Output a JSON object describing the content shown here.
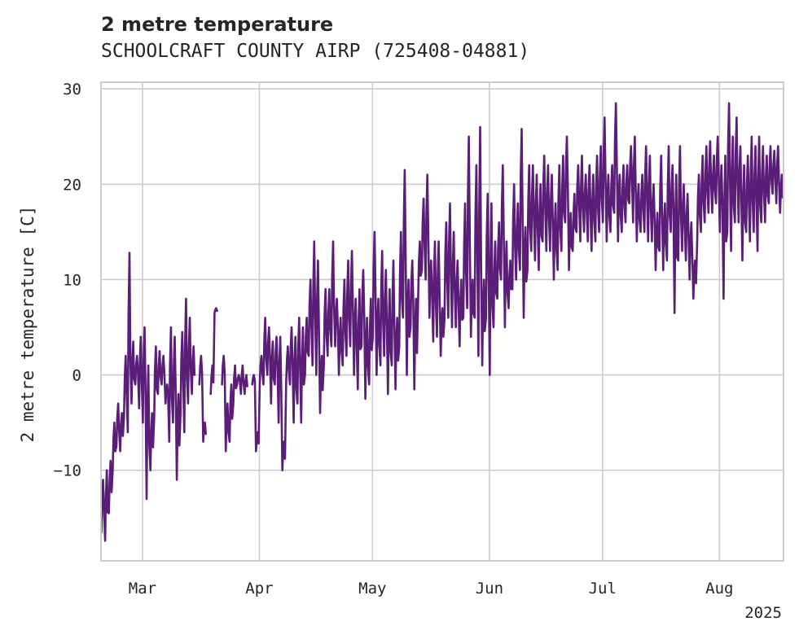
{
  "title": "2 metre temperature",
  "subtitle": "SCHOOLCRAFT COUNTY AIRP (725408-04881)",
  "colors": {
    "line": "#5b1e78",
    "grid": "#cccccc",
    "frame": "#cccccc",
    "text": "#262626",
    "background": "#ffffff"
  },
  "chart_data": {
    "type": "line",
    "title": "2 metre temperature",
    "subtitle": "SCHOOLCRAFT COUNTY AIRP (725408-04881)",
    "xlabel": "",
    "ylabel": "2 metre temperature [C]",
    "x_type": "date",
    "xlim": [
      "2025-02-18",
      "2025-08-18"
    ],
    "ylim": [
      -19.5,
      30.7
    ],
    "yticks": [
      -10,
      0,
      10,
      20,
      30
    ],
    "xticks": [
      {
        "date": "2025-03-01",
        "label": "Mar"
      },
      {
        "date": "2025-04-01",
        "label": "Apr"
      },
      {
        "date": "2025-05-01",
        "label": "May"
      },
      {
        "date": "2025-06-01",
        "label": "Jun"
      },
      {
        "date": "2025-07-01",
        "label": "Jul"
      },
      {
        "date": "2025-08-01",
        "label": "Aug"
      }
    ],
    "x_offset_label": "2025",
    "grid": true,
    "legend": "none",
    "series": [
      {
        "x": [
          "2025-02-18",
          "2025-02-19",
          "2025-02-20",
          "2025-02-21",
          "2025-02-22",
          "2025-02-23",
          "2025-02-24",
          "2025-02-25",
          "2025-02-26",
          "2025-02-27",
          "2025-02-28",
          "2025-03-01",
          "2025-03-02",
          "2025-03-03",
          "2025-03-04",
          "2025-03-05",
          "2025-03-06",
          "2025-03-07",
          "2025-03-08",
          "2025-03-09",
          "2025-03-10",
          "2025-03-11",
          "2025-03-12",
          "2025-03-13",
          "2025-03-14",
          "2025-03-15",
          "2025-03-16",
          "2025-03-17",
          "2025-03-18",
          "2025-03-19",
          "2025-03-20",
          "2025-03-21",
          "2025-03-22",
          "2025-03-23",
          "2025-03-24",
          "2025-03-25",
          "2025-03-26",
          "2025-03-27",
          "2025-03-28",
          "2025-03-29",
          "2025-03-30",
          "2025-03-31",
          "2025-04-01",
          "2025-04-02",
          "2025-04-03",
          "2025-04-04",
          "2025-04-05",
          "2025-04-06",
          "2025-04-07",
          "2025-04-08",
          "2025-04-09",
          "2025-04-10",
          "2025-04-11",
          "2025-04-12",
          "2025-04-13",
          "2025-04-14",
          "2025-04-15",
          "2025-04-16",
          "2025-04-17",
          "2025-04-18",
          "2025-04-19",
          "2025-04-20",
          "2025-04-21",
          "2025-04-22",
          "2025-04-23",
          "2025-04-24",
          "2025-04-25",
          "2025-04-26",
          "2025-04-27",
          "2025-04-28",
          "2025-04-29",
          "2025-04-30",
          "2025-05-01",
          "2025-05-02",
          "2025-05-03",
          "2025-05-04",
          "2025-05-05",
          "2025-05-06",
          "2025-05-07",
          "2025-05-08",
          "2025-05-09",
          "2025-05-10",
          "2025-05-11",
          "2025-05-12",
          "2025-05-13",
          "2025-05-14",
          "2025-05-15",
          "2025-05-16",
          "2025-05-17",
          "2025-05-18",
          "2025-05-19",
          "2025-05-20",
          "2025-05-21",
          "2025-05-22",
          "2025-05-23",
          "2025-05-24",
          "2025-05-25",
          "2025-05-26",
          "2025-05-27",
          "2025-05-28",
          "2025-05-29",
          "2025-05-30",
          "2025-05-31",
          "2025-06-01",
          "2025-06-02",
          "2025-06-03",
          "2025-06-04",
          "2025-06-05",
          "2025-06-06",
          "2025-06-07",
          "2025-06-08",
          "2025-06-09",
          "2025-06-10",
          "2025-06-11",
          "2025-06-12",
          "2025-06-13",
          "2025-06-14",
          "2025-06-15",
          "2025-06-16",
          "2025-06-17",
          "2025-06-18",
          "2025-06-19",
          "2025-06-20",
          "2025-06-21",
          "2025-06-22",
          "2025-06-23",
          "2025-06-24",
          "2025-06-25",
          "2025-06-26",
          "2025-06-27",
          "2025-06-28",
          "2025-06-29",
          "2025-06-30",
          "2025-07-01",
          "2025-07-02",
          "2025-07-03",
          "2025-07-04",
          "2025-07-05",
          "2025-07-06",
          "2025-07-07",
          "2025-07-08",
          "2025-07-09",
          "2025-07-10",
          "2025-07-11",
          "2025-07-12",
          "2025-07-13",
          "2025-07-14",
          "2025-07-15",
          "2025-07-16",
          "2025-07-17",
          "2025-07-18",
          "2025-07-19",
          "2025-07-20",
          "2025-07-21",
          "2025-07-22",
          "2025-07-23",
          "2025-07-24",
          "2025-07-25",
          "2025-07-26",
          "2025-07-27",
          "2025-07-28",
          "2025-07-29",
          "2025-07-30",
          "2025-07-31",
          "2025-08-01",
          "2025-08-02",
          "2025-08-03",
          "2025-08-04",
          "2025-08-05",
          "2025-08-06",
          "2025-08-07",
          "2025-08-08",
          "2025-08-09",
          "2025-08-10",
          "2025-08-11",
          "2025-08-12",
          "2025-08-13",
          "2025-08-14",
          "2025-08-15",
          "2025-08-16",
          "2025-08-17"
        ],
        "min": [
          -16.5,
          -17.4,
          -14.5,
          -10.0,
          -7.5,
          -8.0,
          -4.5,
          -6.0,
          -3.0,
          -1.0,
          -3.5,
          -5.0,
          -13.0,
          -10.0,
          -4.5,
          -2.0,
          -1.0,
          -3.0,
          -7.0,
          -5.0,
          -11.0,
          -4.0,
          -6.0,
          -3.0,
          -2.0,
          null,
          -1.0,
          -7.0,
          null,
          -2.0,
          6.5,
          null,
          -1.0,
          -8.0,
          -7.0,
          -3.0,
          -1.0,
          -2.0,
          -2.0,
          null,
          -1.0,
          -8.0,
          -1.0,
          -1.0,
          0.0,
          -3.0,
          -1.0,
          -5.0,
          -10.0,
          -1.0,
          -1.0,
          -5.0,
          -3.0,
          -5.0,
          0.0,
          2.0,
          1.0,
          0.0,
          -4.0,
          1.0,
          2.0,
          3.0,
          3.0,
          0.0,
          1.0,
          2.0,
          3.0,
          0.0,
          -1.5,
          3.0,
          -2.5,
          -1.0,
          4.0,
          0.0,
          1.0,
          2.0,
          -2.0,
          1.0,
          -1.5,
          3.0,
          6.0,
          0.0,
          5.0,
          -1.5,
          8.0,
          11.0,
          10.0,
          6.0,
          3.5,
          4.0,
          2.0,
          6.0,
          6.0,
          5.0,
          5.0,
          3.0,
          6.0,
          7.0,
          4.0,
          6.0,
          2.0,
          1.0,
          6.0,
          0.0,
          5.0,
          8.0,
          10.0,
          5.0,
          7.0,
          9.0,
          10.0,
          11.0,
          6.0,
          11.0,
          13.0,
          12.0,
          11.0,
          14.0,
          13.0,
          13.0,
          10.0,
          11.0,
          13.0,
          16.0,
          11.0,
          13.0,
          15.0,
          14.0,
          15.0,
          14.0,
          13.0,
          14.0,
          15.0,
          16.0,
          14.0,
          15.0,
          17.0,
          14.0,
          15.0,
          16.0,
          18.0,
          16.0,
          14.0,
          15.0,
          15.0,
          14.0,
          14.0,
          11.0,
          13.0,
          11.0,
          12.0,
          15.0,
          6.5,
          12.0,
          13.0,
          12.0,
          10.0,
          8.0,
          14.0,
          15.0,
          16.0,
          17.0,
          17.0,
          18.0,
          15.0,
          8.0,
          15.0,
          13.0,
          16.0,
          16.0,
          12.0,
          15.0,
          14.0,
          15.0,
          13.0,
          16.0,
          16.0,
          18.0,
          19.0,
          18.0,
          17.0
        ],
        "max": [
          -11.0,
          -10.0,
          -9.0,
          -5.0,
          -3.0,
          -4.0,
          2.0,
          12.8,
          3.5,
          2.0,
          4.0,
          5.0,
          1.0,
          -4.0,
          3.0,
          2.5,
          2.0,
          -1.0,
          5.0,
          4.0,
          -2.0,
          4.5,
          8.0,
          6.0,
          3.0,
          null,
          2.0,
          -5.0,
          null,
          1.0,
          7.0,
          null,
          2.0,
          -3.0,
          -1.0,
          1.0,
          0.0,
          1.0,
          0.0,
          null,
          0.0,
          -6.0,
          2.0,
          6.0,
          5.0,
          3.5,
          4.0,
          4.0,
          -7.0,
          3.0,
          5.0,
          4.0,
          6.0,
          5.0,
          6.0,
          10.0,
          14.0,
          12.0,
          2.0,
          9.0,
          9.0,
          14.0,
          8.0,
          6.0,
          10.0,
          12.0,
          13.0,
          8.0,
          9.0,
          11.0,
          6.0,
          8.0,
          15.0,
          8.0,
          13.0,
          11.0,
          9.0,
          12.0,
          6.0,
          15.0,
          21.5,
          10.0,
          12.0,
          8.0,
          14.0,
          18.5,
          21.0,
          12.0,
          14.0,
          14.0,
          7.0,
          16.0,
          18.0,
          15.0,
          12.0,
          10.0,
          18.0,
          25.0,
          10.0,
          22.0,
          26.0,
          10.0,
          19.0,
          18.0,
          14.0,
          16.0,
          22.0,
          14.0,
          12.0,
          20.0,
          18.0,
          25.8,
          15.5,
          22.0,
          22.0,
          21.0,
          20.0,
          23.0,
          22.0,
          21.0,
          18.0,
          22.0,
          23.0,
          25.0,
          17.0,
          19.0,
          22.0,
          23.0,
          21.0,
          22.0,
          21.0,
          23.0,
          24.0,
          27.0,
          21.0,
          22.0,
          28.5,
          21.0,
          22.0,
          22.0,
          24.0,
          25.0,
          20.0,
          21.0,
          24.0,
          23.0,
          20.0,
          17.0,
          23.0,
          18.0,
          24.0,
          22.0,
          21.0,
          24.0,
          20.0,
          19.0,
          16.0,
          12.0,
          21.0,
          23.0,
          24.0,
          24.5,
          23.0,
          25.0,
          22.0,
          23.0,
          28.5,
          25.0,
          27.0,
          24.0,
          22.0,
          23.0,
          25.0,
          24.0,
          25.0,
          24.0,
          23.0,
          24.0,
          23.5,
          24.0,
          21.0
        ]
      }
    ]
  }
}
